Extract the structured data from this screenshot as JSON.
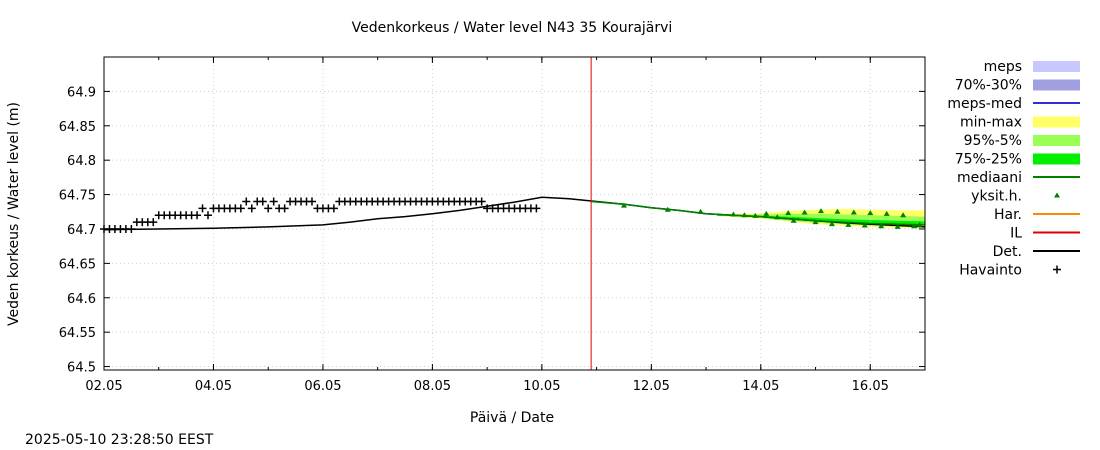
{
  "chart_data": {
    "type": "line",
    "title": "Vedenkorkeus / Water level   N43 35 Kourajärvi",
    "xlabel": "Päivä / Date",
    "ylabel": "Veden korkeus / Water level (m)",
    "x_ticks": [
      "02.05",
      "04.05",
      "06.05",
      "08.05",
      "10.05",
      "12.05",
      "14.05",
      "16.05"
    ],
    "y_ticks": [
      "64.9",
      "64.85",
      "64.8",
      "64.75",
      "64.7",
      "64.65",
      "64.6",
      "64.55",
      "64.5"
    ],
    "xlim": [
      2.0,
      17.0
    ],
    "ylim": [
      64.495,
      64.95
    ],
    "grid": true,
    "legend_position": "right",
    "current_time_marker": 10.9,
    "legend": [
      {
        "label": "meps",
        "color": "#c8c8ff",
        "kind": "band"
      },
      {
        "label": "70%-30%",
        "color": "#a0a0e0",
        "kind": "band"
      },
      {
        "label": "meps-med",
        "color": "#3030d0",
        "kind": "line"
      },
      {
        "label": "min-max",
        "color": "#ffff66",
        "kind": "band"
      },
      {
        "label": "95%-5%",
        "color": "#99ff55",
        "kind": "band"
      },
      {
        "label": "75%-25%",
        "color": "#00ee00",
        "kind": "band"
      },
      {
        "label": "mediaani",
        "color": "#008000",
        "kind": "line"
      },
      {
        "label": "yksit.h.",
        "color": "#008000",
        "kind": "marker"
      },
      {
        "label": "Har.",
        "color": "#ff8800",
        "kind": "line"
      },
      {
        "label": "IL",
        "color": "#e00000",
        "kind": "line"
      },
      {
        "label": "Det.",
        "color": "#000000",
        "kind": "line"
      },
      {
        "label": "Havainto",
        "color": "#000000",
        "kind": "plus"
      }
    ],
    "series": [
      {
        "key": "det",
        "x": [
          2.0,
          3.0,
          4.0,
          5.0,
          6.0,
          6.5,
          7.0,
          7.5,
          8.0,
          8.5,
          9.0,
          9.5,
          10.0,
          10.5,
          11.0,
          11.5,
          12.0,
          12.5,
          13.0,
          13.5,
          14.0,
          14.5,
          15.0,
          15.5,
          16.0,
          16.5,
          17.0
        ],
        "values": [
          64.699,
          64.7,
          64.701,
          64.703,
          64.706,
          64.71,
          64.715,
          64.718,
          64.722,
          64.727,
          64.733,
          64.739,
          64.746,
          64.744,
          64.74,
          64.736,
          64.731,
          64.727,
          64.722,
          64.72,
          64.718,
          64.715,
          64.712,
          64.709,
          64.707,
          64.705,
          64.703
        ]
      },
      {
        "key": "observed",
        "x": [
          2.0,
          2.1,
          2.2,
          2.3,
          2.4,
          2.5,
          2.6,
          2.7,
          2.8,
          2.9,
          3.0,
          3.1,
          3.2,
          3.3,
          3.4,
          3.5,
          3.6,
          3.7,
          3.8,
          3.9,
          4.0,
          4.1,
          4.2,
          4.3,
          4.4,
          4.5,
          4.6,
          4.7,
          4.8,
          4.9,
          5.0,
          5.1,
          5.2,
          5.3,
          5.4,
          5.5,
          5.6,
          5.7,
          5.8,
          5.9,
          6.0,
          6.1,
          6.2,
          6.3,
          6.4,
          6.5,
          6.6,
          6.7,
          6.8,
          6.9,
          7.0,
          7.1,
          7.2,
          7.3,
          7.4,
          7.5,
          7.6,
          7.7,
          7.8,
          7.9,
          8.0,
          8.1,
          8.2,
          8.3,
          8.4,
          8.5,
          8.6,
          8.7,
          8.8,
          8.9,
          9.0,
          9.1,
          9.2,
          9.3,
          9.4,
          9.5,
          9.6,
          9.7,
          9.8,
          9.9
        ],
        "values": [
          64.7,
          64.7,
          64.7,
          64.7,
          64.7,
          64.7,
          64.71,
          64.71,
          64.71,
          64.71,
          64.72,
          64.72,
          64.72,
          64.72,
          64.72,
          64.72,
          64.72,
          64.72,
          64.73,
          64.72,
          64.73,
          64.73,
          64.73,
          64.73,
          64.73,
          64.73,
          64.74,
          64.73,
          64.74,
          64.74,
          64.73,
          64.74,
          64.73,
          64.73,
          64.74,
          64.74,
          64.74,
          64.74,
          64.74,
          64.73,
          64.73,
          64.73,
          64.73,
          64.74,
          64.74,
          64.74,
          64.74,
          64.74,
          64.74,
          64.74,
          64.74,
          64.74,
          64.74,
          64.74,
          64.74,
          64.74,
          64.74,
          64.74,
          64.74,
          64.74,
          64.74,
          64.74,
          64.74,
          64.74,
          64.74,
          64.74,
          64.74,
          64.74,
          64.74,
          64.74,
          64.73,
          64.73,
          64.73,
          64.73,
          64.73,
          64.73,
          64.73,
          64.73,
          64.73,
          64.73
        ]
      },
      {
        "key": "min_max",
        "x": [
          13.2,
          13.6,
          14.0,
          14.5,
          15.0,
          15.5,
          16.0,
          16.5,
          17.0
        ],
        "upper": [
          64.72,
          64.722,
          64.723,
          64.726,
          64.728,
          64.729,
          64.728,
          64.727,
          64.727
        ],
        "lower": [
          64.719,
          64.717,
          64.715,
          64.711,
          64.707,
          64.705,
          64.703,
          64.702,
          64.701
        ]
      },
      {
        "key": "p95_5",
        "x": [
          13.2,
          13.6,
          14.0,
          14.5,
          15.0,
          15.5,
          16.0,
          16.5,
          17.0
        ],
        "upper": [
          64.72,
          64.721,
          64.721,
          64.722,
          64.722,
          64.721,
          64.72,
          64.719,
          64.718
        ],
        "lower": [
          64.719,
          64.718,
          64.716,
          64.712,
          64.709,
          64.707,
          64.705,
          64.704,
          64.703
        ]
      },
      {
        "key": "p75_25",
        "x": [
          13.2,
          13.6,
          14.0,
          14.5,
          15.0,
          15.5,
          16.0,
          16.5,
          17.0
        ],
        "upper": [
          64.72,
          64.72,
          64.719,
          64.718,
          64.716,
          64.714,
          64.713,
          64.712,
          64.711
        ],
        "lower": [
          64.719,
          64.719,
          64.717,
          64.714,
          64.711,
          64.709,
          64.707,
          64.706,
          64.705
        ]
      },
      {
        "key": "median",
        "x": [
          10.9,
          11.5,
          12.0,
          12.5,
          13.0,
          13.5,
          14.0,
          14.5,
          15.0,
          15.5,
          16.0,
          16.5,
          17.0
        ],
        "values": [
          64.74,
          64.736,
          64.731,
          64.727,
          64.722,
          64.72,
          64.718,
          64.715,
          64.712,
          64.71,
          64.708,
          64.707,
          64.706
        ]
      },
      {
        "key": "single_members",
        "x": [
          11.5,
          12.3,
          12.9,
          13.5,
          13.7,
          13.9,
          14.1,
          14.3,
          14.5,
          14.6,
          14.8,
          15.0,
          15.1,
          15.3,
          15.4,
          15.6,
          15.7,
          15.9,
          16.0,
          16.2,
          16.3,
          16.5,
          16.6,
          16.8,
          16.9
        ],
        "values": [
          64.734,
          64.728,
          64.725,
          64.721,
          64.72,
          64.719,
          64.722,
          64.717,
          64.723,
          64.712,
          64.724,
          64.71,
          64.726,
          64.707,
          64.725,
          64.706,
          64.724,
          64.705,
          64.723,
          64.704,
          64.722,
          64.703,
          64.72,
          64.704,
          64.706
        ]
      }
    ]
  },
  "timestamp": "2025-05-10 23:28:50 EEST"
}
